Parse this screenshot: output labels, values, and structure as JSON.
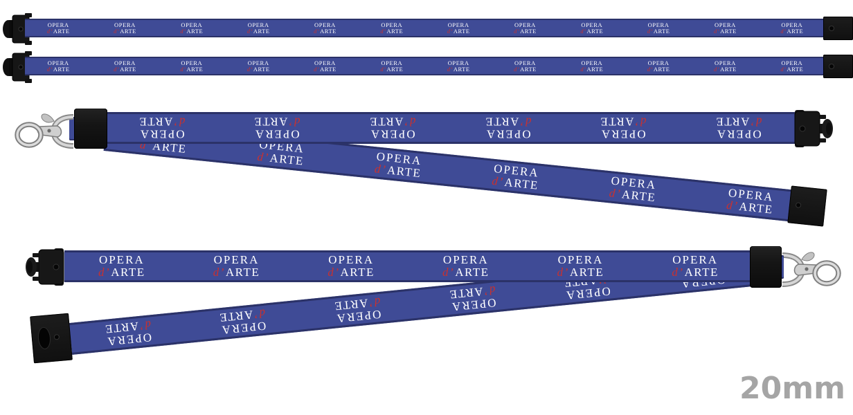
{
  "brand": {
    "line1": "OPERA",
    "line2_red": "d’",
    "line2_white": "ARTE"
  },
  "size_label": "20mm",
  "colors": {
    "strap_blue": "#3f4b96",
    "strap_edge": "#2b3268",
    "hardware_black": "#141414",
    "metal_silver": "#b5b5b5",
    "logo_white": "#ffffff",
    "logo_red": "#c9312f",
    "size_label_gray": "#a5a5a5"
  },
  "views": {
    "flat_strip_1": {
      "logo_count": 12
    },
    "flat_strip_2": {
      "logo_count": 12
    },
    "open_lanyard_clasp_left": {
      "upper_logo_count": 6,
      "lower_logo_count": 6
    },
    "open_lanyard_clasp_right": {
      "upper_logo_count": 6,
      "lower_logo_count": 6
    }
  }
}
